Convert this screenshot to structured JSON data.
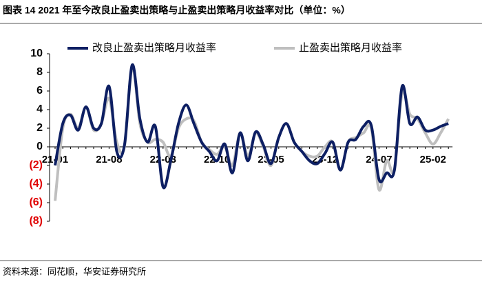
{
  "chart_data": {
    "type": "line",
    "title": "图表 14 2021 年至今改良止盈卖出策略与止盈卖出策略月收益率对比（单位：%）",
    "source": "资料来源：同花顺，华安证券研究所",
    "categories": [
      "21-01",
      null,
      null,
      null,
      null,
      null,
      null,
      "21-08",
      null,
      null,
      null,
      null,
      null,
      null,
      "22-03",
      null,
      null,
      null,
      null,
      null,
      null,
      "22-10",
      null,
      null,
      null,
      null,
      null,
      null,
      "23-05",
      null,
      null,
      null,
      null,
      null,
      null,
      "23-12",
      null,
      null,
      null,
      null,
      null,
      null,
      "24-07",
      null,
      null,
      null,
      null,
      null,
      null,
      "25-02",
      null,
      null
    ],
    "series": [
      {
        "name": "改良止盈卖出策略月收益率",
        "color": "#0d1f63",
        "values": [
          -2,
          2.5,
          3.4,
          1.8,
          4.3,
          2,
          2.5,
          6.5,
          -0.5,
          0.2,
          8.8,
          3,
          0.5,
          2.2,
          -4.3,
          -1.5,
          2.5,
          4.5,
          2.5,
          0.5,
          -0.5,
          -1.5,
          0.3,
          -2.8,
          1.5,
          -1.5,
          1.6,
          0.2,
          -1.8,
          1,
          2.5,
          0.5,
          -0.5,
          -1.5,
          -1.8,
          -0.7,
          0.5,
          -2.5,
          0.5,
          0.8,
          2.2,
          2.3,
          -3.5,
          -2.8,
          -2.5,
          6.5,
          2.5,
          3.2,
          1.8,
          1.8,
          2.2,
          2.5
        ]
      },
      {
        "name": "止盈卖出策略月收益率",
        "color": "#bfbfbf",
        "values": [
          -5.8,
          2,
          3.5,
          2,
          4.3,
          1.8,
          2.5,
          5.2,
          0.5,
          0,
          8.6,
          2.5,
          0.5,
          0.8,
          0.5,
          -1,
          2,
          3,
          2.8,
          0.5,
          -0.3,
          -0.8,
          0,
          -2,
          1.5,
          -1,
          1.5,
          0,
          -2,
          1,
          2.5,
          0.5,
          -0.5,
          -1,
          -1,
          0,
          0.5,
          -2.5,
          0.5,
          1,
          1.5,
          2,
          -4.6,
          -1.5,
          -2.5,
          5.8,
          3.5,
          3,
          1.5,
          0.3,
          1.5,
          3
        ]
      }
    ],
    "ylim": [
      -8,
      10
    ],
    "yticks": [
      10,
      8,
      6,
      4,
      2,
      0,
      {
        "value": -2,
        "label": "(2)"
      },
      {
        "value": -4,
        "label": "(4)"
      },
      {
        "value": -6,
        "label": "(6)"
      },
      {
        "value": -8,
        "label": "(8)"
      }
    ],
    "negative_tick_color": "#e00000",
    "grid": false
  }
}
